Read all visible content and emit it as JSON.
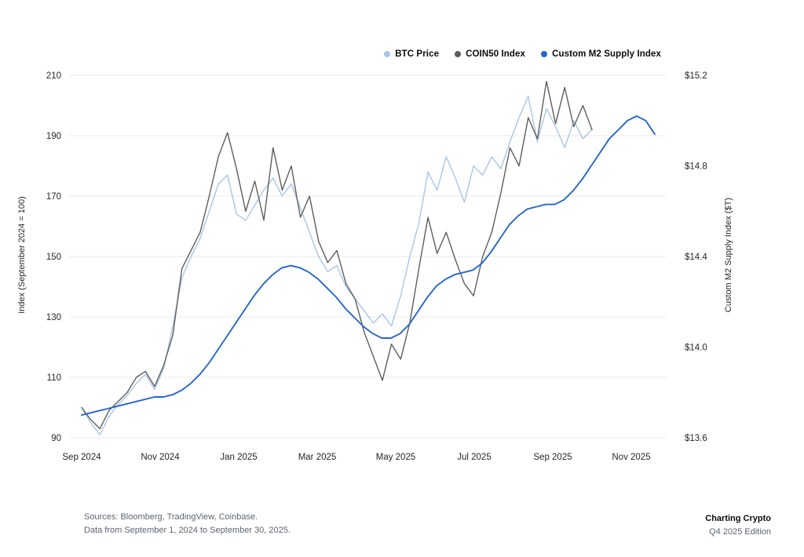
{
  "chart_data": {
    "type": "line",
    "title": "",
    "grid_color": "#e7e9eb",
    "grid": "horizontal-only",
    "legend_position": "top-right",
    "y_left": {
      "label": "Index (September 2024 = 100)",
      "range": [
        90,
        210
      ],
      "ticks": [
        90,
        110,
        130,
        150,
        170,
        190,
        210
      ]
    },
    "y_right": {
      "label": "Custom M2 Supply Index ($T)",
      "range": [
        13.6,
        15.2
      ],
      "ticks": [
        13.6,
        14.0,
        14.4,
        14.8,
        15.2
      ],
      "tick_labels": [
        "$13.6",
        "$14.0",
        "$14.4",
        "$14.8",
        "$15.2"
      ]
    },
    "x": {
      "tick_labels": [
        "Sep 2024",
        "Nov 2024",
        "Jan 2025",
        "Mar 2025",
        "May 2025",
        "Jul 2025",
        "Sep 2025",
        "Nov 2025"
      ],
      "tick_months": [
        0,
        2,
        4,
        6,
        8,
        10,
        12,
        14
      ],
      "range_months": [
        0,
        14.9
      ]
    },
    "series": [
      {
        "name": "BTC Price",
        "color": "#a6c6ea",
        "axis": "left",
        "width": 1.4,
        "x_start": 0,
        "x_end": 13.0,
        "values": [
          100,
          95,
          91,
          97,
          101,
          104,
          108,
          111,
          106,
          113,
          127,
          143,
          150,
          156,
          165,
          174,
          177,
          164,
          162,
          167,
          172,
          176,
          170,
          174,
          166,
          158,
          150,
          145,
          147,
          140,
          136,
          132,
          128,
          131,
          127,
          137,
          150,
          161,
          178,
          172,
          183,
          176,
          168,
          180,
          177,
          183,
          179,
          188,
          196,
          203,
          188,
          199,
          193,
          186,
          195,
          189,
          192
        ]
      },
      {
        "name": "COIN50 Index",
        "color": "#5f5e5a",
        "axis": "left",
        "width": 1.4,
        "x_start": 0,
        "x_end": 13.0,
        "values": [
          100,
          96,
          93,
          99,
          102,
          105,
          110,
          112,
          107,
          114,
          124,
          146,
          152,
          158,
          170,
          183,
          191,
          179,
          165,
          175,
          162,
          186,
          172,
          180,
          163,
          170,
          155,
          148,
          152,
          141,
          136,
          125,
          117,
          109,
          121,
          116,
          128,
          146,
          163,
          151,
          158,
          149,
          141,
          137,
          150,
          158,
          171,
          186,
          180,
          196,
          189,
          208,
          194,
          206,
          193,
          200,
          192
        ]
      },
      {
        "name": "Custom M2 Supply Index",
        "color": "#2666cc",
        "axis": "right",
        "width": 1.9,
        "x_start": 0,
        "x_end": 14.6,
        "values": [
          13.7,
          13.71,
          13.72,
          13.73,
          13.74,
          13.75,
          13.76,
          13.77,
          13.78,
          13.78,
          13.79,
          13.81,
          13.84,
          13.88,
          13.93,
          13.99,
          14.05,
          14.11,
          14.17,
          14.23,
          14.28,
          14.32,
          14.35,
          14.36,
          14.35,
          14.33,
          14.3,
          14.26,
          14.22,
          14.17,
          14.13,
          14.09,
          14.06,
          14.04,
          14.04,
          14.06,
          14.1,
          14.16,
          14.22,
          14.27,
          14.3,
          14.32,
          14.33,
          14.34,
          14.37,
          14.42,
          14.48,
          14.54,
          14.58,
          14.61,
          14.62,
          14.63,
          14.63,
          14.65,
          14.69,
          14.74,
          14.8,
          14.86,
          14.92,
          14.96,
          15.0,
          15.02,
          15.0,
          14.94
        ]
      }
    ]
  },
  "footer": {
    "sources_line": "Sources: Bloomberg, TradingView, Coinbase.",
    "range_line": "Data from September 1, 2024 to September 30, 2025.",
    "brand_title": "Charting Crypto",
    "brand_subtitle": "Q4 2025 Edition"
  }
}
